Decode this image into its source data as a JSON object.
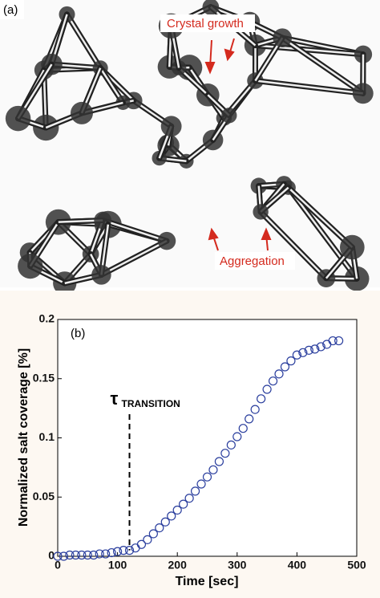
{
  "image_panel": {
    "label": "(a)",
    "annotations": [
      "Crystal growth",
      "Aggregation"
    ]
  },
  "chart_data": {
    "type": "scatter",
    "label": "(b)",
    "x_label": "Time [sec]",
    "y_label": "Normalized salt coverage [%]",
    "transition_symbol": "τ",
    "transition_subscript": "TRANSITION",
    "transition_x": 120,
    "transition_top": 0.12,
    "marker_color": "#2b3f9e",
    "xlim": [
      0,
      500
    ],
    "xticks": [
      0,
      100,
      200,
      300,
      400,
      500
    ],
    "ylim": [
      0,
      0.2
    ],
    "yticks": [
      0,
      0.05,
      0.1,
      0.15,
      0.2
    ],
    "x": [
      0,
      10,
      20,
      30,
      40,
      50,
      60,
      70,
      80,
      90,
      100,
      110,
      120,
      130,
      140,
      150,
      160,
      170,
      180,
      190,
      200,
      210,
      220,
      230,
      240,
      250,
      260,
      270,
      280,
      290,
      300,
      310,
      320,
      330,
      340,
      350,
      360,
      370,
      380,
      390,
      400,
      410,
      420,
      430,
      440,
      450,
      460,
      470
    ],
    "values": [
      0.0,
      0.0,
      0.001,
      0.001,
      0.001,
      0.001,
      0.001,
      0.002,
      0.002,
      0.003,
      0.004,
      0.005,
      0.005,
      0.007,
      0.01,
      0.014,
      0.019,
      0.024,
      0.029,
      0.034,
      0.039,
      0.044,
      0.049,
      0.055,
      0.061,
      0.067,
      0.073,
      0.08,
      0.087,
      0.094,
      0.101,
      0.108,
      0.116,
      0.124,
      0.133,
      0.141,
      0.148,
      0.154,
      0.16,
      0.165,
      0.17,
      0.172,
      0.174,
      0.175,
      0.177,
      0.179,
      0.182,
      0.182
    ]
  }
}
